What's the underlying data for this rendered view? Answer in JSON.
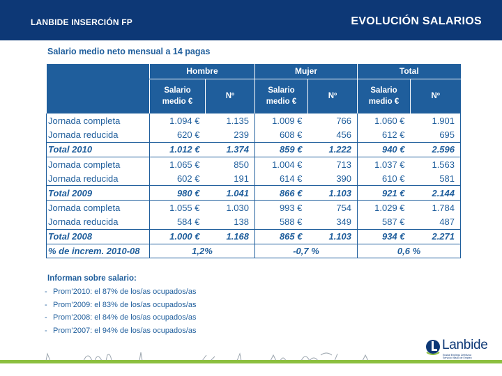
{
  "header": {
    "left_title": "LANBIDE INSERCIÓN FP",
    "right_title": "EVOLUCIÓN SALARIOS"
  },
  "subtitle": "Salario medio neto mensual a 14 pagas",
  "table": {
    "groups": [
      "Hombre",
      "Mujer",
      "Total"
    ],
    "sub_salary": "Salario medio €",
    "sub_count": "Nº",
    "rows": [
      {
        "label": "Jornada completa",
        "values": [
          "1.094 €",
          "1.135",
          "1.009 €",
          "766",
          "1.060 €",
          "1.901"
        ],
        "type": "normal"
      },
      {
        "label": "Jornada reducida",
        "values": [
          "620 €",
          "239",
          "608 €",
          "456",
          "612 €",
          "695"
        ],
        "type": "normal"
      },
      {
        "label": "Total 2010",
        "values": [
          "1.012 €",
          "1.374",
          "859 €",
          "1.222",
          "940 €",
          "2.596"
        ],
        "type": "total"
      },
      {
        "label": "Jornada completa",
        "values": [
          "1.065 €",
          "850",
          "1.004 €",
          "713",
          "1.037 €",
          "1.563"
        ],
        "type": "normal"
      },
      {
        "label": "Jornada reducida",
        "values": [
          "602 €",
          "191",
          "614 €",
          "390",
          "610 €",
          "581"
        ],
        "type": "normal"
      },
      {
        "label": "Total 2009",
        "values": [
          "980 €",
          "1.041",
          "866 €",
          "1.103",
          "921 €",
          "2.144"
        ],
        "type": "total"
      },
      {
        "label": "Jornada completa",
        "values": [
          "1.055 €",
          "1.030",
          "993 €",
          "754",
          "1.029 €",
          "1.784"
        ],
        "type": "normal"
      },
      {
        "label": "Jornada reducida",
        "values": [
          "584 €",
          "138",
          "588 €",
          "349",
          "587 €",
          "487"
        ],
        "type": "normal"
      },
      {
        "label": "Total 2008",
        "values": [
          "1.000 €",
          "1.168",
          "865 €",
          "1.103",
          "934 €",
          "2.271"
        ],
        "type": "total"
      }
    ],
    "increment": {
      "label": "% de increm. 2010-08",
      "values": [
        "1,2%",
        "-0,7 %",
        "0,6 %"
      ]
    }
  },
  "info": {
    "title": "Informan sobre salario:",
    "bullet": "-",
    "items": [
      "Prom’2010: el 87% de los/as ocupados/as",
      "Prom’2009: el 83% de los/as ocupados/as",
      "Prom’2008: el 84% de los/as ocupados/as",
      "Prom’2007: el 94% de los/as ocupados/as"
    ]
  },
  "logo": {
    "name": "Lanbide",
    "sub_lines": [
      "Euskal Enplegu Zerbitzua",
      "Servicio Vasco de Empleo"
    ]
  },
  "colors": {
    "header_bg": "#0d3876",
    "table_header_bg": "#1f5e9c",
    "text_blue": "#1f5e9c",
    "footer_green": "#8cbf3f"
  }
}
